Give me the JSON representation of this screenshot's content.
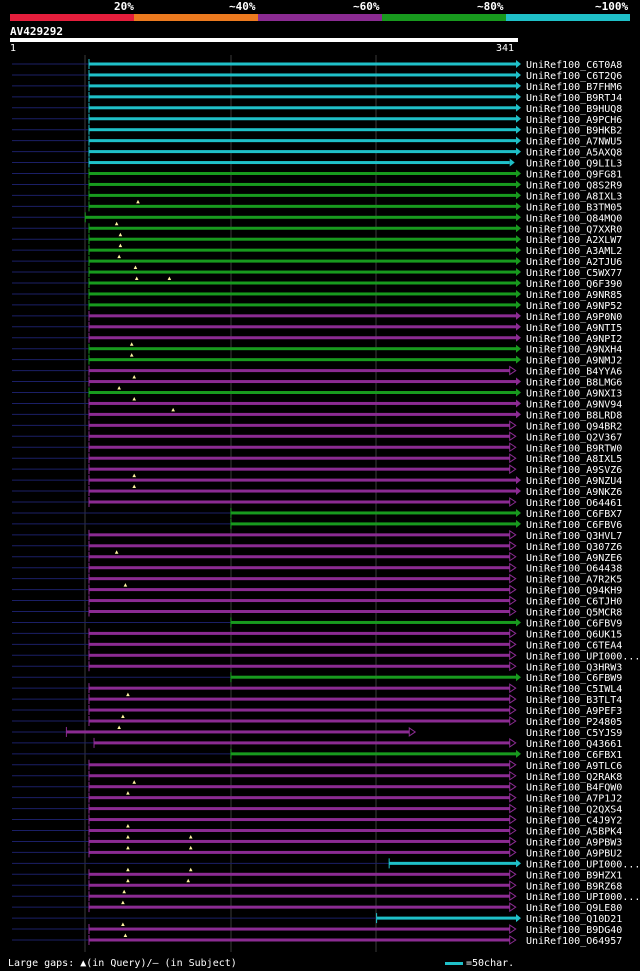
{
  "legend": {
    "labels": [
      "20%",
      "~40%",
      "~60%",
      "~80%",
      "~100%"
    ],
    "colors": [
      "#e51e3c",
      "#ec7a1f",
      "#8b2b92",
      "#189a1e",
      "#1fc0c8"
    ]
  },
  "query": {
    "id": "AV429292",
    "start": "1",
    "end": "341",
    "length": 341
  },
  "colors": {
    "cyan": "#1fc0c8",
    "green": "#189a1e",
    "purple": "#8b2b92",
    "blue": "#1b1f66",
    "gray": "#3a3a3a",
    "marker": "#fff5a0"
  },
  "hits": [
    {
      "label": "UniRef100_C6T0A8",
      "color": "cyan",
      "start": 1,
      "end": 341,
      "arrow": "filled",
      "gaps": []
    },
    {
      "label": "UniRef100_C6T2Q6",
      "color": "cyan",
      "start": 1,
      "end": 341,
      "arrow": "filled",
      "gaps": []
    },
    {
      "label": "UniRef100_B7FHM6",
      "color": "cyan",
      "start": 1,
      "end": 341,
      "arrow": "filled",
      "gaps": []
    },
    {
      "label": "UniRef100_B9RTJ4",
      "color": "cyan",
      "start": 1,
      "end": 341,
      "arrow": "filled",
      "gaps": []
    },
    {
      "label": "UniRef100_B9HUQ8",
      "color": "cyan",
      "start": 1,
      "end": 341,
      "arrow": "filled",
      "gaps": []
    },
    {
      "label": "UniRef100_A9PCH6",
      "color": "cyan",
      "start": 1,
      "end": 341,
      "arrow": "filled",
      "gaps": []
    },
    {
      "label": "UniRef100_B9HKB2",
      "color": "cyan",
      "start": 1,
      "end": 341,
      "arrow": "filled",
      "gaps": []
    },
    {
      "label": "UniRef100_A7NWU5",
      "color": "cyan",
      "start": 1,
      "end": 341,
      "arrow": "filled",
      "gaps": []
    },
    {
      "label": "UniRef100_A5AXQ8",
      "color": "cyan",
      "start": 1,
      "end": 341,
      "arrow": "filled",
      "gaps": []
    },
    {
      "label": "UniRef100_Q9LIL3",
      "color": "cyan",
      "start": 1,
      "end": 336,
      "arrow": "filled",
      "gaps": []
    },
    {
      "label": "UniRef100_Q9FG81",
      "color": "green",
      "start": 1,
      "end": 341,
      "arrow": "filled",
      "gaps": []
    },
    {
      "label": "UniRef100_Q8S2R9",
      "color": "green",
      "start": 1,
      "end": 341,
      "arrow": "filled",
      "gaps": []
    },
    {
      "label": "UniRef100_A8IXL3",
      "color": "green",
      "start": 1,
      "end": 341,
      "arrow": "filled",
      "gaps": []
    },
    {
      "label": "UniRef100_B3TM05",
      "color": "green",
      "start": 1,
      "end": 341,
      "arrow": "filled",
      "gaps": [
        40
      ]
    },
    {
      "label": "UniRef100_Q84MQ0",
      "color": "green",
      "start": -2,
      "end": 341,
      "arrow": "filled",
      "gaps": []
    },
    {
      "label": "UniRef100_Q7XXR0",
      "color": "green",
      "start": 1,
      "end": 341,
      "arrow": "filled",
      "gaps": [
        23
      ]
    },
    {
      "label": "UniRef100_A2XLW7",
      "color": "green",
      "start": 1,
      "end": 341,
      "arrow": "filled",
      "gaps": [
        26
      ]
    },
    {
      "label": "UniRef100_A3AML2",
      "color": "green",
      "start": 1,
      "end": 341,
      "arrow": "filled",
      "gaps": [
        26
      ]
    },
    {
      "label": "UniRef100_A2TJU6",
      "color": "green",
      "start": 1,
      "end": 341,
      "arrow": "filled",
      "gaps": [
        25
      ]
    },
    {
      "label": "UniRef100_C5WX77",
      "color": "green",
      "start": 1,
      "end": 341,
      "arrow": "filled",
      "gaps": [
        38
      ]
    },
    {
      "label": "UniRef100_Q6F390",
      "color": "green",
      "start": 1,
      "end": 341,
      "arrow": "filled",
      "gaps": [
        39,
        65
      ]
    },
    {
      "label": "UniRef100_A9NR85",
      "color": "green",
      "start": 1,
      "end": 341,
      "arrow": "filled",
      "gaps": []
    },
    {
      "label": "UniRef100_A9NP52",
      "color": "green",
      "start": 1,
      "end": 341,
      "arrow": "filled",
      "gaps": []
    },
    {
      "label": "UniRef100_A9P0N0",
      "color": "purple",
      "start": 1,
      "end": 341,
      "arrow": "filled",
      "gaps": []
    },
    {
      "label": "UniRef100_A9NTI5",
      "color": "purple",
      "start": 1,
      "end": 341,
      "arrow": "filled",
      "gaps": []
    },
    {
      "label": "UniRef100_A9NPI2",
      "color": "purple",
      "start": 1,
      "end": 341,
      "arrow": "filled",
      "gaps": []
    },
    {
      "label": "UniRef100_A9NXH4",
      "color": "green",
      "start": 1,
      "end": 341,
      "arrow": "filled",
      "gaps": [
        35
      ]
    },
    {
      "label": "UniRef100_A9NMJ2",
      "color": "green",
      "start": 1,
      "end": 341,
      "arrow": "filled",
      "gaps": [
        35
      ]
    },
    {
      "label": "UniRef100_B4YYA6",
      "color": "purple",
      "start": 1,
      "end": 336,
      "arrow": "open",
      "gaps": []
    },
    {
      "label": "UniRef100_B8LMG6",
      "color": "purple",
      "start": 1,
      "end": 341,
      "arrow": "filled",
      "gaps": [
        37
      ]
    },
    {
      "label": "UniRef100_A9NXI3",
      "color": "green",
      "start": 1,
      "end": 341,
      "arrow": "filled",
      "gaps": [
        25
      ]
    },
    {
      "label": "UniRef100_A9NV94",
      "color": "purple",
      "start": 1,
      "end": 341,
      "arrow": "filled",
      "gaps": [
        37
      ]
    },
    {
      "label": "UniRef100_B8LRD8",
      "color": "purple",
      "start": 1,
      "end": 341,
      "arrow": "filled",
      "gaps": [
        68
      ]
    },
    {
      "label": "UniRef100_Q94BR2",
      "color": "purple",
      "start": 1,
      "end": 336,
      "arrow": "open",
      "gaps": []
    },
    {
      "label": "UniRef100_Q2V367",
      "color": "purple",
      "start": 1,
      "end": 336,
      "arrow": "open",
      "gaps": []
    },
    {
      "label": "UniRef100_B9RTW0",
      "color": "purple",
      "start": 1,
      "end": 336,
      "arrow": "open",
      "gaps": []
    },
    {
      "label": "UniRef100_A8IXL5",
      "color": "purple",
      "start": 1,
      "end": 336,
      "arrow": "open",
      "gaps": []
    },
    {
      "label": "UniRef100_A9SVZ6",
      "color": "purple",
      "start": 1,
      "end": 336,
      "arrow": "open",
      "gaps": []
    },
    {
      "label": "UniRef100_A9NZU4",
      "color": "purple",
      "start": 1,
      "end": 341,
      "arrow": "filled",
      "gaps": [
        37
      ]
    },
    {
      "label": "UniRef100_A9NKZ6",
      "color": "purple",
      "start": 1,
      "end": 341,
      "arrow": "filled",
      "gaps": [
        37
      ]
    },
    {
      "label": "UniRef100_O64461",
      "color": "purple",
      "start": 1,
      "end": 336,
      "arrow": "open",
      "gaps": []
    },
    {
      "label": "UniRef100_C6FBX7",
      "color": "green",
      "start": 114,
      "end": 341,
      "arrow": "filled",
      "gaps": []
    },
    {
      "label": "UniRef100_C6FBV6",
      "color": "green",
      "start": 114,
      "end": 341,
      "arrow": "filled",
      "gaps": []
    },
    {
      "label": "UniRef100_Q3HVL7",
      "color": "purple",
      "start": 1,
      "end": 336,
      "arrow": "open",
      "gaps": []
    },
    {
      "label": "UniRef100_Q307Z6",
      "color": "purple",
      "start": 1,
      "end": 336,
      "arrow": "open",
      "gaps": []
    },
    {
      "label": "UniRef100_A9NZE6",
      "color": "purple",
      "start": 1,
      "end": 336,
      "arrow": "open",
      "gaps": [
        23
      ]
    },
    {
      "label": "UniRef100_O64438",
      "color": "purple",
      "start": 1,
      "end": 336,
      "arrow": "open",
      "gaps": []
    },
    {
      "label": "UniRef100_A7R2K5",
      "color": "purple",
      "start": 1,
      "end": 336,
      "arrow": "open",
      "gaps": []
    },
    {
      "label": "UniRef100_Q94KH9",
      "color": "purple",
      "start": 1,
      "end": 336,
      "arrow": "open",
      "gaps": [
        30
      ]
    },
    {
      "label": "UniRef100_C6TJH0",
      "color": "purple",
      "start": 1,
      "end": 336,
      "arrow": "open",
      "gaps": []
    },
    {
      "label": "UniRef100_Q5MCR8",
      "color": "purple",
      "start": 1,
      "end": 336,
      "arrow": "open",
      "gaps": []
    },
    {
      "label": "UniRef100_C6FBV9",
      "color": "green",
      "start": 114,
      "end": 341,
      "arrow": "filled",
      "gaps": []
    },
    {
      "label": "UniRef100_Q6UK15",
      "color": "purple",
      "start": 1,
      "end": 336,
      "arrow": "open",
      "gaps": []
    },
    {
      "label": "UniRef100_C6TEA4",
      "color": "purple",
      "start": 1,
      "end": 336,
      "arrow": "open",
      "gaps": []
    },
    {
      "label": "UniRef100_UPI000...",
      "color": "purple",
      "start": 1,
      "end": 336,
      "arrow": "open",
      "gaps": []
    },
    {
      "label": "UniRef100_Q3HRW3",
      "color": "purple",
      "start": 1,
      "end": 336,
      "arrow": "open",
      "gaps": []
    },
    {
      "label": "UniRef100_C6FBW9",
      "color": "green",
      "start": 114,
      "end": 341,
      "arrow": "filled",
      "gaps": []
    },
    {
      "label": "UniRef100_C5IWL4",
      "color": "purple",
      "start": 1,
      "end": 336,
      "arrow": "open",
      "gaps": []
    },
    {
      "label": "UniRef100_B3TLT4",
      "color": "purple",
      "start": 1,
      "end": 336,
      "arrow": "open",
      "gaps": [
        32
      ]
    },
    {
      "label": "UniRef100_A9PEF3",
      "color": "purple",
      "start": 1,
      "end": 336,
      "arrow": "open",
      "gaps": []
    },
    {
      "label": "UniRef100_P24805",
      "color": "purple",
      "start": 1,
      "end": 336,
      "arrow": "open",
      "gaps": [
        28
      ]
    },
    {
      "label": "UniRef100_C5YJS9",
      "color": "purple",
      "start": -17,
      "end": 256,
      "arrow": "open",
      "gaps": [
        25
      ]
    },
    {
      "label": "UniRef100_Q43661",
      "color": "purple",
      "start": 5,
      "end": 336,
      "arrow": "open",
      "gaps": []
    },
    {
      "label": "UniRef100_C6FBX1",
      "color": "green",
      "start": 114,
      "end": 341,
      "arrow": "filled",
      "gaps": []
    },
    {
      "label": "UniRef100_A9TLC6",
      "color": "purple",
      "start": 1,
      "end": 336,
      "arrow": "open",
      "gaps": []
    },
    {
      "label": "UniRef100_Q2RAK8",
      "color": "purple",
      "start": 1,
      "end": 336,
      "arrow": "open",
      "gaps": []
    },
    {
      "label": "UniRef100_B4FQW0",
      "color": "purple",
      "start": 1,
      "end": 336,
      "arrow": "open",
      "gaps": [
        37
      ]
    },
    {
      "label": "UniRef100_A7P1J2",
      "color": "purple",
      "start": 1,
      "end": 336,
      "arrow": "open",
      "gaps": [
        32
      ]
    },
    {
      "label": "UniRef100_Q2QXS4",
      "color": "purple",
      "start": 1,
      "end": 336,
      "arrow": "open",
      "gaps": []
    },
    {
      "label": "UniRef100_C4J9Y2",
      "color": "purple",
      "start": 1,
      "end": 336,
      "arrow": "open",
      "gaps": []
    },
    {
      "label": "UniRef100_A5BPK4",
      "color": "purple",
      "start": 1,
      "end": 336,
      "arrow": "open",
      "gaps": [
        32
      ]
    },
    {
      "label": "UniRef100_A9PBW3",
      "color": "purple",
      "start": 1,
      "end": 336,
      "arrow": "open",
      "gaps": [
        32,
        82
      ]
    },
    {
      "label": "UniRef100_A9PBU2",
      "color": "purple",
      "start": 1,
      "end": 336,
      "arrow": "open",
      "gaps": [
        32,
        82
      ]
    },
    {
      "label": "UniRef100_UPI000...",
      "color": "cyan",
      "start": 240,
      "end": 341,
      "arrow": "filled",
      "gaps": []
    },
    {
      "label": "UniRef100_B9HZX1",
      "color": "purple",
      "start": 1,
      "end": 336,
      "arrow": "open",
      "gaps": [
        32,
        82
      ]
    },
    {
      "label": "UniRef100_B9RZ68",
      "color": "purple",
      "start": 1,
      "end": 336,
      "arrow": "open",
      "gaps": [
        32,
        80
      ]
    },
    {
      "label": "UniRef100_UPI000...",
      "color": "purple",
      "start": 1,
      "end": 336,
      "arrow": "open",
      "gaps": [
        29
      ]
    },
    {
      "label": "UniRef100_Q9LE80",
      "color": "purple",
      "start": 1,
      "end": 336,
      "arrow": "open",
      "gaps": [
        28
      ]
    },
    {
      "label": "UniRef100_Q10D21",
      "color": "cyan",
      "start": 230,
      "end": 341,
      "arrow": "filled",
      "gaps": []
    },
    {
      "label": "UniRef100_B9DG40",
      "color": "purple",
      "start": 1,
      "end": 336,
      "arrow": "open",
      "gaps": [
        28
      ]
    },
    {
      "label": "UniRef100_O64957",
      "color": "purple",
      "start": 1,
      "end": 336,
      "arrow": "open",
      "gaps": [
        30
      ]
    }
  ],
  "footer": {
    "gaps_text": "Large gaps: ▲(in Query)/– (in Subject)",
    "scale_text": "=50char."
  }
}
